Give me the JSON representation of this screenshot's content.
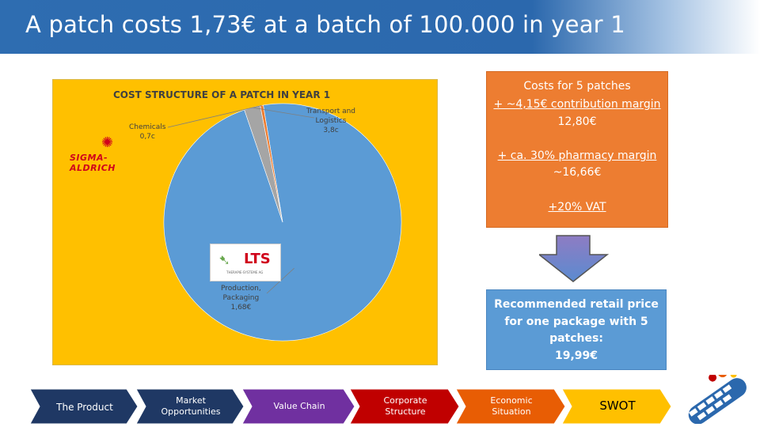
{
  "slide": {
    "title": "A patch costs 1,73€ at a batch of 100.000 in year 1"
  },
  "chart_data": {
    "type": "pie",
    "title": "COST STRUCTURE OF A PATCH IN YEAR 1",
    "slices": [
      {
        "label": "Production,\nPackaging\n1,68€",
        "value": 1.68,
        "color": "#5b9bd5"
      },
      {
        "label": "Transport and\nLogistics\n3,8c",
        "value": 0.038,
        "color": "#a5a5a5"
      },
      {
        "label": "Chemicals\n0,7c",
        "value": 0.007,
        "color": "#ed7d31"
      }
    ]
  },
  "logos": {
    "sigma": "SIGMA-ALDRICH",
    "lts": "LTS",
    "lts_sub": "THERAPIE-SYSTEME AG"
  },
  "cost_box": {
    "line1": "Costs for 5 patches",
    "line2": "+ ~4,15€ contribution margin",
    "line3": "12,80€",
    "line4": "+ ca. 30% pharmacy margin",
    "line5": "~16,66€",
    "line6": "+20% VAT"
  },
  "retail_box": {
    "line1": "Recommended retail price",
    "line2": "for one package with 5",
    "line3": "patches:",
    "line4": "19,99€"
  },
  "nav": [
    {
      "label": "The Product",
      "color": "#1f3864"
    },
    {
      "label": "Market\nOpportunities",
      "color": "#1f3864"
    },
    {
      "label": "Value Chain",
      "color": "#7030a0"
    },
    {
      "label": "Corporate\nStructure",
      "color": "#c00000"
    },
    {
      "label": "Economic\nSituation",
      "color": "#e85d04"
    },
    {
      "label": "SWOT",
      "color": "#ffc000"
    }
  ]
}
